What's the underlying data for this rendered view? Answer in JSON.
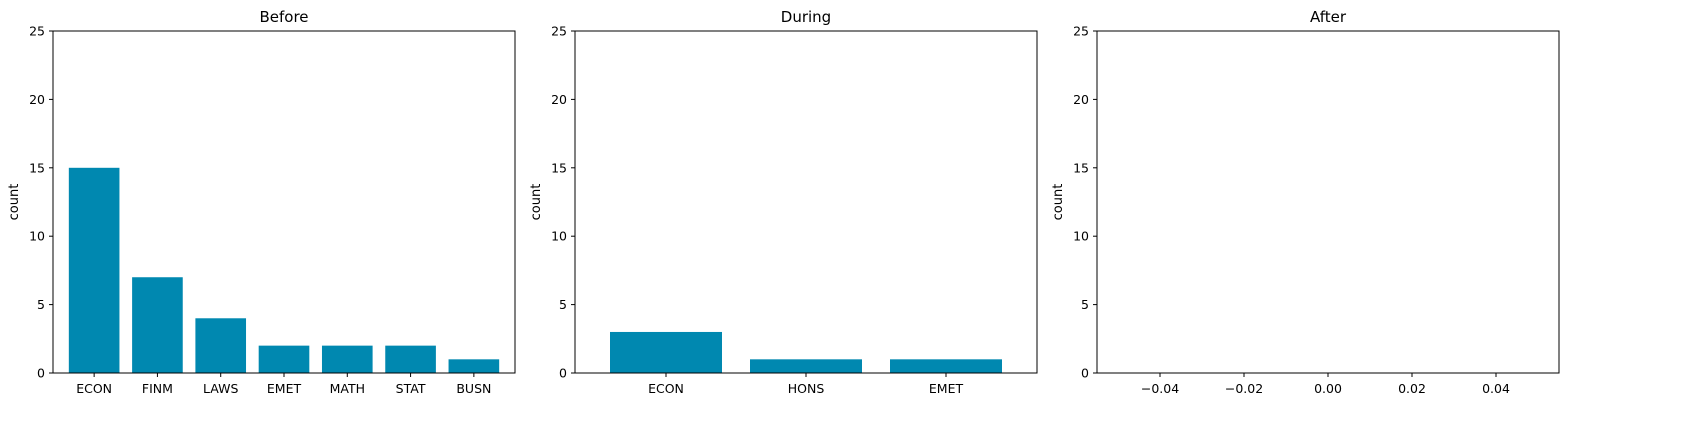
{
  "chart_data": [
    {
      "type": "bar",
      "title": "Before",
      "ylabel": "count",
      "ylim": [
        0,
        25
      ],
      "yticks": [
        0,
        5,
        10,
        15,
        20,
        25
      ],
      "categories": [
        "ECON",
        "FINM",
        "LAWS",
        "EMET",
        "MATH",
        "STAT",
        "BUSN"
      ],
      "values": [
        15,
        7,
        4,
        2,
        2,
        2,
        1
      ],
      "color": "#0088b0"
    },
    {
      "type": "bar",
      "title": "During",
      "ylabel": "count",
      "ylim": [
        0,
        25
      ],
      "yticks": [
        0,
        5,
        10,
        15,
        20,
        25
      ],
      "categories": [
        "ECON",
        "HONS",
        "EMET"
      ],
      "values": [
        3,
        1,
        1
      ],
      "color": "#0088b0"
    },
    {
      "type": "bar",
      "title": "After",
      "ylabel": "count",
      "ylim": [
        0,
        25
      ],
      "yticks": [
        0,
        5,
        10,
        15,
        20,
        25
      ],
      "categories": [],
      "values": [],
      "xlim": [
        -0.055,
        0.055
      ],
      "xticks": [
        -0.04,
        -0.02,
        0.0,
        0.02,
        0.04
      ],
      "xtick_labels": [
        "−0.04",
        "−0.02",
        "0.00",
        "0.02",
        "0.04"
      ],
      "color": "#0088b0"
    }
  ]
}
